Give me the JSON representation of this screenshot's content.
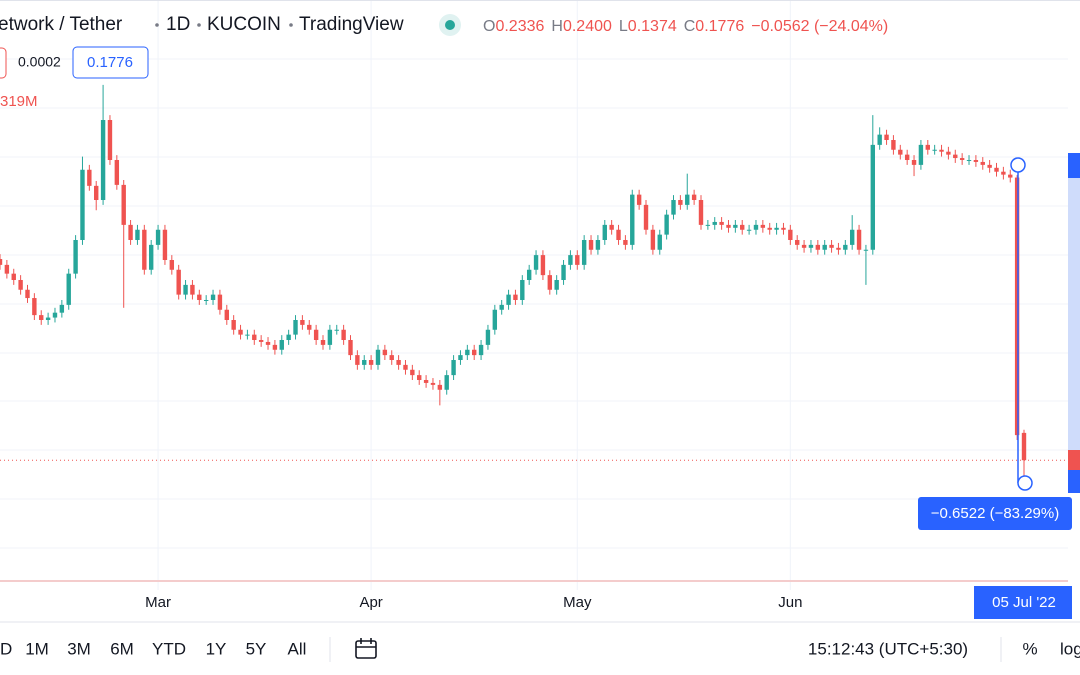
{
  "header": {
    "symbol": "etwork / Tether",
    "interval": "1D",
    "exchange": "KUCOIN",
    "source": "TradingView",
    "ohlc": [
      {
        "key": "O",
        "value": "0.2336"
      },
      {
        "key": "H",
        "value": "0.2400"
      },
      {
        "key": "L",
        "value": "0.1374"
      },
      {
        "key": "C",
        "value": "0.1776"
      }
    ],
    "change": "−0.0562 (−24.04%)"
  },
  "labels": {
    "spread": "0.0002",
    "last": "0.1776",
    "volume": "319M",
    "measure": "−0.6522 (−83.29%)"
  },
  "toolbar": {
    "ranges": [
      "D",
      "1M",
      "3M",
      "6M",
      "YTD",
      "1Y",
      "5Y",
      "All"
    ],
    "clock": "15:12:43 (UTC+5:30)",
    "percent": "%",
    "log": "log"
  },
  "chart_data": {
    "type": "candlestick",
    "up_color": "#26a69a",
    "down_color": "#ef5350",
    "xlim": [
      0,
      149
    ],
    "ylim": [
      -0.068,
      1.121
    ],
    "xticks": [
      {
        "value": 23,
        "label": "Mar"
      },
      {
        "value": 54,
        "label": "Apr"
      },
      {
        "value": 84,
        "label": "May"
      },
      {
        "value": 115,
        "label": "Jun"
      },
      {
        "value": 149,
        "label": "05 Jul '22"
      }
    ],
    "open": [
      0.59,
      0.578,
      0.56,
      0.547,
      0.527,
      0.51,
      0.475,
      0.465,
      0.47,
      0.48,
      0.496,
      0.56,
      0.629,
      0.773,
      0.74,
      0.711,
      0.875,
      0.793,
      0.742,
      0.66,
      0.629,
      0.65,
      0.568,
      0.619,
      0.65,
      0.588,
      0.568,
      0.517,
      0.537,
      0.517,
      0.506,
      0.506,
      0.517,
      0.486,
      0.465,
      0.445,
      0.435,
      0.435,
      0.424,
      0.42,
      0.414,
      0.404,
      0.424,
      0.435,
      0.465,
      0.455,
      0.445,
      0.424,
      0.414,
      0.445,
      0.445,
      0.424,
      0.393,
      0.373,
      0.383,
      0.373,
      0.404,
      0.393,
      0.383,
      0.373,
      0.363,
      0.352,
      0.342,
      0.336,
      0.332,
      0.322,
      0.352,
      0.383,
      0.393,
      0.404,
      0.393,
      0.414,
      0.445,
      0.486,
      0.496,
      0.517,
      0.506,
      0.547,
      0.568,
      0.598,
      0.557,
      0.527,
      0.547,
      0.578,
      0.598,
      0.578,
      0.629,
      0.609,
      0.629,
      0.66,
      0.65,
      0.629,
      0.619,
      0.722,
      0.701,
      0.65,
      0.609,
      0.64,
      0.681,
      0.711,
      0.701,
      0.722,
      0.711,
      0.66,
      0.66,
      0.666,
      0.66,
      0.654,
      0.66,
      0.65,
      0.65,
      0.66,
      0.654,
      0.65,
      0.654,
      0.65,
      0.629,
      0.619,
      0.613,
      0.619,
      0.609,
      0.619,
      0.613,
      0.609,
      0.619,
      0.65,
      0.609,
      0.609,
      0.824,
      0.845,
      0.834,
      0.814,
      0.804,
      0.793,
      0.783,
      0.824,
      0.814,
      0.814,
      0.81,
      0.804,
      0.797,
      0.793,
      0.793,
      0.789,
      0.783,
      0.777,
      0.769,
      0.763,
      0.757,
      0.2336
    ],
    "high": [
      0.6,
      0.588,
      0.57,
      0.557,
      0.537,
      0.52,
      0.485,
      0.48,
      0.49,
      0.506,
      0.57,
      0.639,
      0.8,
      0.783,
      0.75,
      0.947,
      0.885,
      0.803,
      0.752,
      0.67,
      0.66,
      0.66,
      0.629,
      0.66,
      0.66,
      0.598,
      0.578,
      0.547,
      0.547,
      0.527,
      0.516,
      0.527,
      0.527,
      0.496,
      0.475,
      0.455,
      0.445,
      0.445,
      0.434,
      0.43,
      0.424,
      0.434,
      0.445,
      0.475,
      0.475,
      0.465,
      0.455,
      0.434,
      0.455,
      0.455,
      0.455,
      0.434,
      0.403,
      0.393,
      0.393,
      0.414,
      0.414,
      0.403,
      0.393,
      0.383,
      0.373,
      0.362,
      0.352,
      0.346,
      0.342,
      0.362,
      0.393,
      0.403,
      0.414,
      0.414,
      0.424,
      0.455,
      0.496,
      0.506,
      0.527,
      0.527,
      0.557,
      0.578,
      0.608,
      0.608,
      0.567,
      0.557,
      0.588,
      0.608,
      0.608,
      0.639,
      0.639,
      0.639,
      0.67,
      0.67,
      0.66,
      0.639,
      0.732,
      0.732,
      0.711,
      0.66,
      0.65,
      0.691,
      0.721,
      0.721,
      0.765,
      0.732,
      0.721,
      0.67,
      0.676,
      0.676,
      0.67,
      0.67,
      0.67,
      0.66,
      0.67,
      0.67,
      0.664,
      0.664,
      0.664,
      0.66,
      0.639,
      0.629,
      0.629,
      0.629,
      0.629,
      0.629,
      0.623,
      0.629,
      0.68,
      0.66,
      0.619,
      0.885,
      0.86,
      0.855,
      0.844,
      0.824,
      0.814,
      0.803,
      0.834,
      0.834,
      0.824,
      0.824,
      0.82,
      0.814,
      0.807,
      0.803,
      0.803,
      0.799,
      0.793,
      0.787,
      0.779,
      0.773,
      0.762,
      0.24
    ],
    "low": [
      0.568,
      0.55,
      0.537,
      0.517,
      0.5,
      0.465,
      0.455,
      0.455,
      0.46,
      0.47,
      0.486,
      0.55,
      0.619,
      0.73,
      0.69,
      0.701,
      0.783,
      0.732,
      0.49,
      0.619,
      0.619,
      0.558,
      0.558,
      0.609,
      0.578,
      0.558,
      0.507,
      0.507,
      0.507,
      0.496,
      0.496,
      0.496,
      0.476,
      0.455,
      0.435,
      0.425,
      0.425,
      0.414,
      0.41,
      0.404,
      0.394,
      0.394,
      0.414,
      0.425,
      0.445,
      0.435,
      0.414,
      0.404,
      0.404,
      0.435,
      0.414,
      0.383,
      0.363,
      0.363,
      0.363,
      0.363,
      0.383,
      0.373,
      0.363,
      0.353,
      0.342,
      0.332,
      0.326,
      0.322,
      0.29,
      0.312,
      0.342,
      0.373,
      0.383,
      0.383,
      0.383,
      0.404,
      0.435,
      0.476,
      0.486,
      0.496,
      0.496,
      0.537,
      0.558,
      0.547,
      0.517,
      0.517,
      0.537,
      0.568,
      0.568,
      0.568,
      0.599,
      0.599,
      0.619,
      0.64,
      0.619,
      0.609,
      0.609,
      0.691,
      0.64,
      0.599,
      0.599,
      0.63,
      0.671,
      0.691,
      0.691,
      0.701,
      0.65,
      0.65,
      0.65,
      0.65,
      0.644,
      0.644,
      0.64,
      0.64,
      0.64,
      0.644,
      0.64,
      0.64,
      0.64,
      0.619,
      0.609,
      0.603,
      0.603,
      0.599,
      0.599,
      0.603,
      0.599,
      0.599,
      0.609,
      0.599,
      0.537,
      0.599,
      0.814,
      0.824,
      0.804,
      0.794,
      0.783,
      0.76,
      0.773,
      0.804,
      0.804,
      0.8,
      0.794,
      0.787,
      0.783,
      0.783,
      0.779,
      0.773,
      0.767,
      0.759,
      0.753,
      0.747,
      0.219,
      0.1374
    ],
    "close": [
      0.578,
      0.56,
      0.547,
      0.527,
      0.51,
      0.475,
      0.465,
      0.47,
      0.48,
      0.496,
      0.56,
      0.629,
      0.773,
      0.74,
      0.711,
      0.875,
      0.793,
      0.742,
      0.66,
      0.629,
      0.65,
      0.568,
      0.619,
      0.65,
      0.588,
      0.568,
      0.517,
      0.537,
      0.517,
      0.506,
      0.506,
      0.517,
      0.486,
      0.465,
      0.445,
      0.435,
      0.435,
      0.424,
      0.42,
      0.414,
      0.404,
      0.424,
      0.435,
      0.465,
      0.455,
      0.445,
      0.424,
      0.414,
      0.445,
      0.445,
      0.424,
      0.393,
      0.373,
      0.383,
      0.373,
      0.404,
      0.393,
      0.383,
      0.373,
      0.363,
      0.352,
      0.342,
      0.336,
      0.332,
      0.322,
      0.352,
      0.383,
      0.393,
      0.404,
      0.393,
      0.414,
      0.445,
      0.486,
      0.496,
      0.517,
      0.506,
      0.547,
      0.568,
      0.598,
      0.557,
      0.527,
      0.547,
      0.578,
      0.598,
      0.578,
      0.629,
      0.609,
      0.629,
      0.66,
      0.65,
      0.629,
      0.619,
      0.722,
      0.701,
      0.65,
      0.609,
      0.64,
      0.681,
      0.711,
      0.701,
      0.722,
      0.711,
      0.66,
      0.66,
      0.666,
      0.66,
      0.654,
      0.66,
      0.65,
      0.65,
      0.66,
      0.654,
      0.65,
      0.654,
      0.65,
      0.629,
      0.619,
      0.613,
      0.619,
      0.609,
      0.619,
      0.613,
      0.609,
      0.619,
      0.65,
      0.609,
      0.609,
      0.824,
      0.845,
      0.834,
      0.814,
      0.804,
      0.793,
      0.783,
      0.824,
      0.814,
      0.814,
      0.81,
      0.804,
      0.797,
      0.793,
      0.793,
      0.789,
      0.783,
      0.777,
      0.769,
      0.763,
      0.757,
      0.229,
      0.1776
    ]
  }
}
